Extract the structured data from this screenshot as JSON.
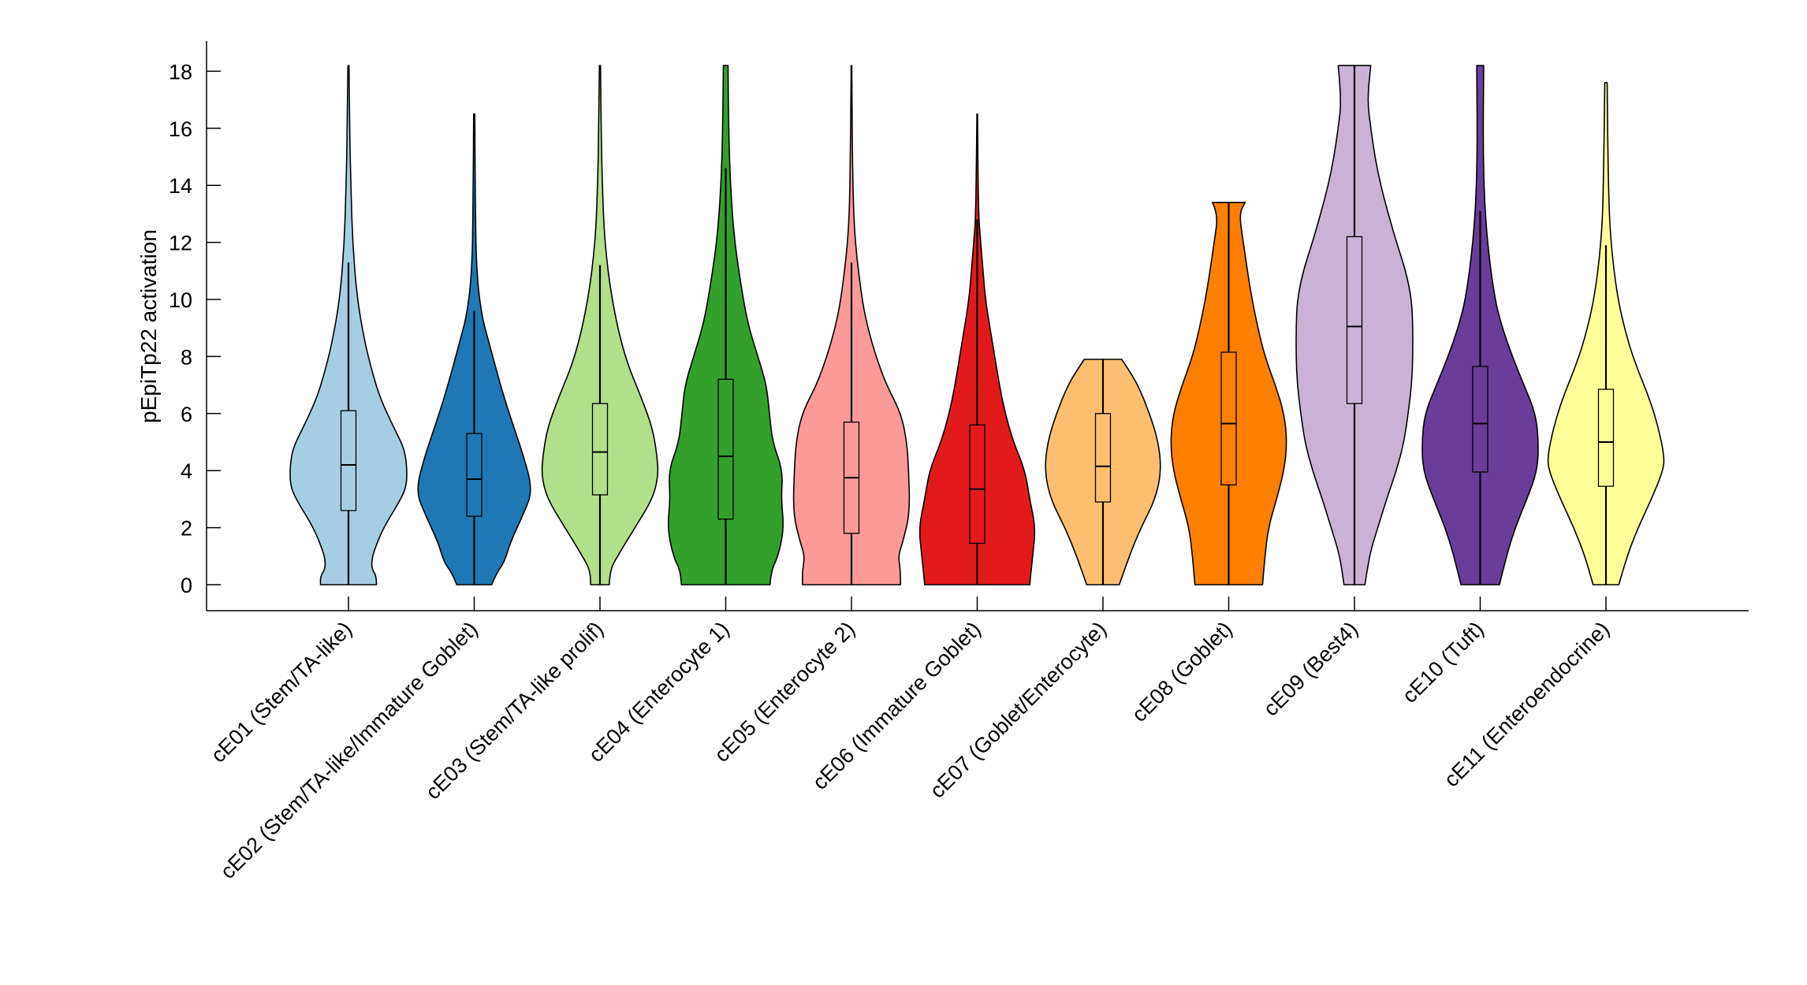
{
  "chart_data": {
    "type": "violin",
    "title": "",
    "xlabel": "",
    "ylabel": "pEpiTp22 activation",
    "ylim": [
      -0.9,
      19.1
    ],
    "yticks": [
      0,
      2,
      4,
      6,
      8,
      10,
      12,
      14,
      16,
      18
    ],
    "grid": false,
    "categories": [
      "cE01 (Stem/TA-like)",
      "cE02 (Stem/TA-like/Immature Goblet)",
      "cE03 (Stem/TA-like prolif)",
      "cE04 (Enterocyte 1)",
      "cE05 (Enterocyte 2)",
      "cE06 (Immature Goblet)",
      "cE07 (Goblet/Enterocyte)",
      "cE08 (Goblet)",
      "cE09 (Best4)",
      "cE10 (Tuft)",
      "cE11 (Enteroendocrine)"
    ],
    "series": [
      {
        "name": "cE01 (Stem/TA-like)",
        "color": "#a6cee3",
        "median": 4.2,
        "q1": 2.6,
        "q3": 6.1,
        "whisker_low": 0,
        "whisker_high": 11.3,
        "max": 18.2,
        "density": [
          [
            0,
            0.48
          ],
          [
            0.3,
            0.48
          ],
          [
            0.55,
            0.4
          ],
          [
            0.9,
            0.4
          ],
          [
            1.3,
            0.46
          ],
          [
            2,
            0.6
          ],
          [
            3,
            0.9
          ],
          [
            3.5,
            1.0
          ],
          [
            4.2,
            1.0
          ],
          [
            4.8,
            0.95
          ],
          [
            5.5,
            0.78
          ],
          [
            6.5,
            0.55
          ],
          [
            7.5,
            0.4
          ],
          [
            8.5,
            0.28
          ],
          [
            10,
            0.15
          ],
          [
            12,
            0.07
          ],
          [
            14,
            0.04
          ],
          [
            16,
            0.02
          ],
          [
            18.2,
            0.01
          ]
        ]
      },
      {
        "name": "cE02 (Stem/TA-like/Immature Goblet)",
        "color": "#1f78b4",
        "median": 3.7,
        "q1": 2.4,
        "q3": 5.3,
        "whisker_low": 0,
        "whisker_high": 9.6,
        "max": 16.5,
        "density": [
          [
            0,
            0.3
          ],
          [
            0.4,
            0.38
          ],
          [
            0.8,
            0.52
          ],
          [
            1.5,
            0.62
          ],
          [
            2.5,
            0.85
          ],
          [
            3.3,
            1.0
          ],
          [
            4.5,
            0.85
          ],
          [
            6,
            0.6
          ],
          [
            7,
            0.45
          ],
          [
            8.5,
            0.25
          ],
          [
            9.5,
            0.12
          ],
          [
            11,
            0.04
          ],
          [
            13,
            0.02
          ],
          [
            16.5,
            0.01
          ]
        ]
      },
      {
        "name": "cE03 (Stem/TA-like prolif)",
        "color": "#b2df8a",
        "median": 4.65,
        "q1": 3.15,
        "q3": 6.35,
        "whisker_low": 0,
        "whisker_high": 11.2,
        "max": 18.2,
        "density": [
          [
            0,
            0.16
          ],
          [
            0.5,
            0.17
          ],
          [
            1,
            0.3
          ],
          [
            2,
            0.6
          ],
          [
            3,
            0.9
          ],
          [
            3.8,
            1.0
          ],
          [
            4.5,
            0.98
          ],
          [
            5.5,
            0.9
          ],
          [
            6.5,
            0.72
          ],
          [
            8,
            0.42
          ],
          [
            10,
            0.2
          ],
          [
            12,
            0.08
          ],
          [
            14,
            0.04
          ],
          [
            16,
            0.02
          ],
          [
            18.2,
            0.01
          ]
        ]
      },
      {
        "name": "cE04 (Enterocyte 1)",
        "color": "#33a02c",
        "median": 4.5,
        "q1": 2.3,
        "q3": 7.2,
        "whisker_low": 0,
        "whisker_high": 14.6,
        "max": 18.2,
        "density": [
          [
            0,
            0.76
          ],
          [
            0.5,
            0.78
          ],
          [
            1,
            0.9
          ],
          [
            2,
            1.0
          ],
          [
            3,
            0.95
          ],
          [
            4,
            0.98
          ],
          [
            5,
            0.8
          ],
          [
            6,
            0.75
          ],
          [
            7,
            0.7
          ],
          [
            8,
            0.55
          ],
          [
            9,
            0.4
          ],
          [
            10,
            0.3
          ],
          [
            12,
            0.15
          ],
          [
            14,
            0.08
          ],
          [
            16,
            0.05
          ],
          [
            18.2,
            0.04
          ]
        ]
      },
      {
        "name": "cE05 (Enterocyte 2)",
        "color": "#fb9a99",
        "median": 3.75,
        "q1": 1.8,
        "q3": 5.7,
        "whisker_low": 0,
        "whisker_high": 11.3,
        "max": 18.2,
        "density": [
          [
            0,
            0.84
          ],
          [
            0.5,
            0.84
          ],
          [
            1,
            0.8
          ],
          [
            1.5,
            0.88
          ],
          [
            2.5,
            1.0
          ],
          [
            4,
            0.98
          ],
          [
            5,
            0.95
          ],
          [
            6,
            0.85
          ],
          [
            7,
            0.6
          ],
          [
            8,
            0.42
          ],
          [
            9,
            0.28
          ],
          [
            10,
            0.18
          ],
          [
            12,
            0.06
          ],
          [
            14,
            0.02
          ],
          [
            18.2,
            0.005
          ]
        ]
      },
      {
        "name": "cE06 (Immature Goblet)",
        "color": "#e31a1c",
        "median": 3.35,
        "q1": 1.45,
        "q3": 5.6,
        "whisker_low": 0,
        "whisker_high": 12.8,
        "max": 16.5,
        "density": [
          [
            0,
            0.9
          ],
          [
            1,
            0.95
          ],
          [
            2,
            1.0
          ],
          [
            3,
            0.9
          ],
          [
            4,
            0.82
          ],
          [
            5,
            0.62
          ],
          [
            6,
            0.48
          ],
          [
            7,
            0.38
          ],
          [
            8,
            0.3
          ],
          [
            9,
            0.22
          ],
          [
            10,
            0.14
          ],
          [
            11,
            0.1
          ],
          [
            12,
            0.06
          ],
          [
            13,
            0.02
          ],
          [
            16.5,
            0.005
          ]
        ]
      },
      {
        "name": "cE07 (Goblet/Enterocyte)",
        "color": "#fdbf6f",
        "median": 4.15,
        "q1": 2.9,
        "q3": 6.0,
        "whisker_low": 0,
        "whisker_high": 7.9,
        "max": 7.9,
        "density": [
          [
            0,
            0.28
          ],
          [
            1,
            0.45
          ],
          [
            2,
            0.65
          ],
          [
            3,
            0.9
          ],
          [
            4,
            1.0
          ],
          [
            5,
            0.95
          ],
          [
            6,
            0.8
          ],
          [
            7,
            0.6
          ],
          [
            7.6,
            0.42
          ],
          [
            7.9,
            0.32
          ]
        ]
      },
      {
        "name": "cE08 (Goblet)",
        "color": "#ff7f00",
        "median": 5.65,
        "q1": 3.5,
        "q3": 8.15,
        "whisker_low": 0,
        "whisker_high": 13.4,
        "max": 13.4,
        "density": [
          [
            0,
            0.58
          ],
          [
            1,
            0.62
          ],
          [
            2,
            0.68
          ],
          [
            3,
            0.82
          ],
          [
            4,
            0.95
          ],
          [
            5,
            1.0
          ],
          [
            6,
            0.95
          ],
          [
            7,
            0.8
          ],
          [
            8,
            0.62
          ],
          [
            9,
            0.5
          ],
          [
            10,
            0.4
          ],
          [
            11,
            0.32
          ],
          [
            12,
            0.25
          ],
          [
            13,
            0.18
          ],
          [
            13.4,
            0.28
          ]
        ]
      },
      {
        "name": "cE09 (Best4)",
        "color": "#cab2d6",
        "median": 9.05,
        "q1": 6.35,
        "q3": 12.2,
        "whisker_low": 0,
        "whisker_high": 18.2,
        "max": 18.2,
        "density": [
          [
            0,
            0.18
          ],
          [
            1,
            0.25
          ],
          [
            2,
            0.4
          ],
          [
            3,
            0.55
          ],
          [
            4,
            0.72
          ],
          [
            5,
            0.85
          ],
          [
            6,
            0.92
          ],
          [
            7,
            0.98
          ],
          [
            8,
            1.0
          ],
          [
            9,
            1.0
          ],
          [
            10,
            0.98
          ],
          [
            11,
            0.88
          ],
          [
            12,
            0.72
          ],
          [
            13,
            0.58
          ],
          [
            14,
            0.45
          ],
          [
            15,
            0.35
          ],
          [
            16,
            0.28
          ],
          [
            17,
            0.22
          ],
          [
            18.2,
            0.28
          ]
        ]
      },
      {
        "name": "cE10 (Tuft)",
        "color": "#6a3d9a",
        "median": 5.65,
        "q1": 3.95,
        "q3": 7.65,
        "whisker_low": 0,
        "whisker_high": 13.1,
        "max": 18.2,
        "density": [
          [
            0,
            0.33
          ],
          [
            1,
            0.45
          ],
          [
            2,
            0.6
          ],
          [
            3,
            0.8
          ],
          [
            4,
            0.98
          ],
          [
            5,
            1.0
          ],
          [
            6,
            0.95
          ],
          [
            7,
            0.75
          ],
          [
            8,
            0.55
          ],
          [
            9,
            0.38
          ],
          [
            10,
            0.25
          ],
          [
            12,
            0.12
          ],
          [
            14,
            0.06
          ],
          [
            16,
            0.05
          ],
          [
            18.2,
            0.06
          ]
        ]
      },
      {
        "name": "cE11 (Enteroendocrine)",
        "color": "#ffff99",
        "median": 5.0,
        "q1": 3.45,
        "q3": 6.85,
        "whisker_low": 0,
        "whisker_high": 11.9,
        "max": 17.6,
        "density": [
          [
            0,
            0.22
          ],
          [
            1,
            0.36
          ],
          [
            2,
            0.55
          ],
          [
            3,
            0.78
          ],
          [
            4,
            0.98
          ],
          [
            4.5,
            1.0
          ],
          [
            5.5,
            0.9
          ],
          [
            6.5,
            0.75
          ],
          [
            7.5,
            0.55
          ],
          [
            8.5,
            0.38
          ],
          [
            10,
            0.2
          ],
          [
            12,
            0.08
          ],
          [
            14,
            0.04
          ],
          [
            17.6,
            0.02
          ]
        ]
      }
    ]
  }
}
